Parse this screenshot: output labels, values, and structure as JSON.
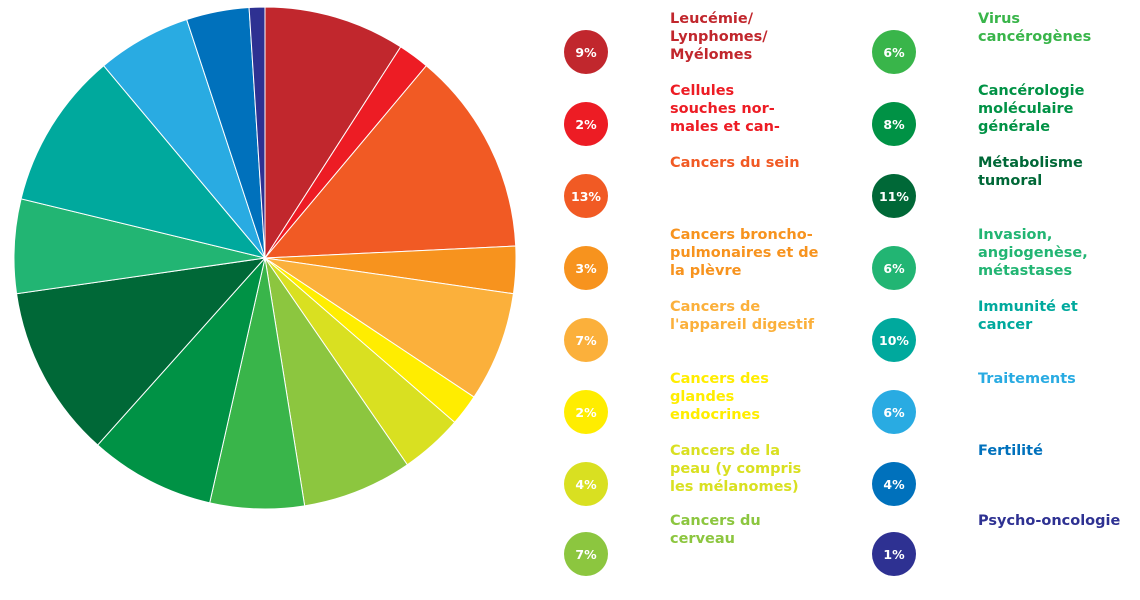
{
  "chart_data": {
    "type": "pie",
    "categories": [
      "Leucémie/\nLynphomes/\nMyélomes",
      "Cellules\nsouches nor-\nmales et can-",
      "Cancers du sein",
      "Cancers broncho-\npulmonaires et de\nla plèvre",
      "Cancers de\nl'appareil digestif",
      "Cancers des\nglandes\nendocrines",
      "Cancers de la\npeau (y compris\nles mélanomes)",
      "Cancers du\ncerveau",
      "Virus\ncancérogènes",
      "Cancérologie\nmoléculaire\ngénérale",
      "Métabolisme\ntumoral",
      "Invasion,\nangiogenèse,\nmétastases",
      "Immunité et\ncancer",
      "Traitements",
      "Fertilité",
      "Psycho-oncologie"
    ],
    "values": [
      9,
      2,
      13,
      3,
      7,
      2,
      4,
      7,
      6,
      8,
      11,
      6,
      10,
      6,
      4,
      1
    ],
    "value_labels": [
      "9%",
      "2%",
      "13%",
      "3%",
      "7%",
      "2%",
      "4%",
      "7%",
      "6%",
      "8%",
      "11%",
      "6%",
      "10%",
      "6%",
      "4%",
      "1%"
    ],
    "colors": [
      "#C1272D",
      "#ED1C24",
      "#F15A24",
      "#F7931E",
      "#FBB03B",
      "#FFED00",
      "#D9E021",
      "#8CC63F",
      "#39B54A",
      "#009245",
      "#006837",
      "#22B573",
      "#00A99D",
      "#29ABE2",
      "#0071BC",
      "#2E3192"
    ],
    "label_colors": [
      "#C1272D",
      "#ED1C24",
      "#F15A24",
      "#F7931E",
      "#FBB03B",
      "#FFED00",
      "#D9E021",
      "#8CC63F",
      "#39B54A",
      "#009245",
      "#006837",
      "#22B573",
      "#00A99D",
      "#29ABE2",
      "#0071BC",
      "#2E3192"
    ],
    "legend_placement": "right"
  }
}
